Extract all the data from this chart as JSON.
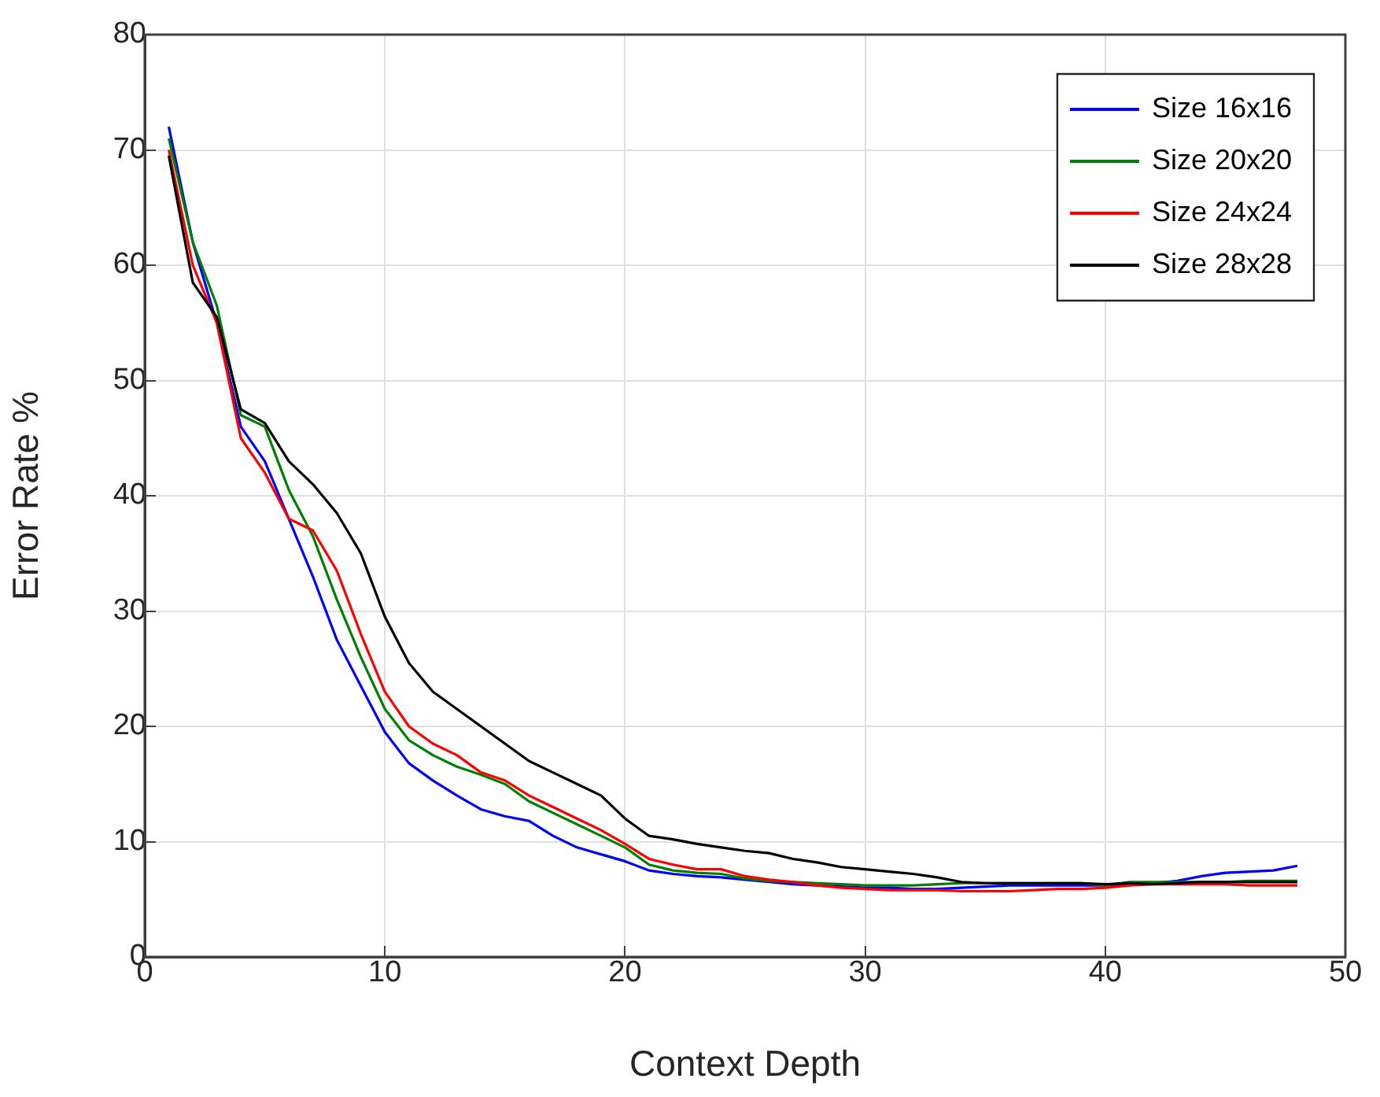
{
  "chart_data": {
    "type": "line",
    "xlabel": "Context Depth",
    "ylabel": "Error Rate %",
    "x": [
      1,
      2,
      3,
      4,
      5,
      6,
      7,
      8,
      9,
      10,
      11,
      12,
      13,
      14,
      15,
      16,
      17,
      18,
      19,
      20,
      21,
      22,
      23,
      24,
      25,
      26,
      27,
      28,
      29,
      30,
      31,
      32,
      33,
      34,
      35,
      36,
      37,
      38,
      39,
      40,
      41,
      42,
      43,
      44,
      45,
      46,
      47,
      48
    ],
    "series": [
      {
        "name": "Size 16x16",
        "color": "#0000ff",
        "values": [
          72,
          62,
          55,
          46,
          43,
          38,
          33,
          27.5,
          23.5,
          19.5,
          16.8,
          15.3,
          14,
          12.8,
          12.2,
          11.8,
          10.5,
          9.5,
          8.9,
          8.3,
          7.5,
          7.2,
          7,
          6.9,
          6.7,
          6.5,
          6.3,
          6.2,
          6.1,
          6,
          6,
          5.9,
          5.9,
          6,
          6.1,
          6.2,
          6.2,
          6.2,
          6.2,
          6.2,
          6.3,
          6.4,
          6.6,
          7,
          7.3,
          7.4,
          7.5,
          7.9
        ]
      },
      {
        "name": "Size 20x20",
        "color": "#008000",
        "values": [
          71,
          62,
          56.5,
          47,
          46,
          40.5,
          36.5,
          31,
          26,
          21.5,
          18.8,
          17.5,
          16.5,
          15.8,
          15,
          13.5,
          12.5,
          11.5,
          10.5,
          9.5,
          8,
          7.5,
          7.3,
          7.2,
          6.8,
          6.6,
          6.5,
          6.4,
          6.3,
          6.2,
          6.2,
          6.2,
          6.3,
          6.4,
          6.4,
          6.4,
          6.4,
          6.4,
          6.4,
          6.2,
          6.5,
          6.5,
          6.5,
          6.5,
          6.5,
          6.6,
          6.6,
          6.6
        ]
      },
      {
        "name": "Size 24x24",
        "color": "#ff0000",
        "values": [
          70,
          60,
          55,
          45,
          42,
          38,
          37,
          33.5,
          28,
          23,
          20,
          18.5,
          17.5,
          16,
          15.3,
          14,
          13,
          12,
          11,
          9.8,
          8.5,
          8,
          7.6,
          7.6,
          7,
          6.7,
          6.5,
          6.2,
          6,
          5.9,
          5.8,
          5.8,
          5.8,
          5.7,
          5.7,
          5.7,
          5.8,
          5.9,
          5.9,
          6,
          6.2,
          6.3,
          6.3,
          6.3,
          6.3,
          6.2,
          6.2,
          6.2
        ]
      },
      {
        "name": "Size 28x28",
        "color": "#000000",
        "values": [
          69.5,
          58.5,
          55.5,
          47.5,
          46.3,
          43,
          41,
          38.5,
          35,
          29.5,
          25.5,
          23,
          21.5,
          20,
          18.5,
          17,
          16,
          15,
          14,
          12,
          10.5,
          10.2,
          9.8,
          9.5,
          9.2,
          9,
          8.5,
          8.2,
          7.8,
          7.6,
          7.4,
          7.2,
          6.9,
          6.5,
          6.4,
          6.4,
          6.4,
          6.4,
          6.4,
          6.3,
          6.4,
          6.3,
          6.4,
          6.5,
          6.5,
          6.5,
          6.5,
          6.5
        ]
      }
    ],
    "xlim": [
      0,
      50
    ],
    "xticks": [
      0,
      10,
      20,
      30,
      40,
      50
    ],
    "ylim": [
      0,
      80
    ],
    "yticks": [
      0,
      10,
      20,
      30,
      40,
      50,
      60,
      70,
      80
    ],
    "grid": true,
    "legend": "top right",
    "marker": "none",
    "line_style": "solid"
  }
}
